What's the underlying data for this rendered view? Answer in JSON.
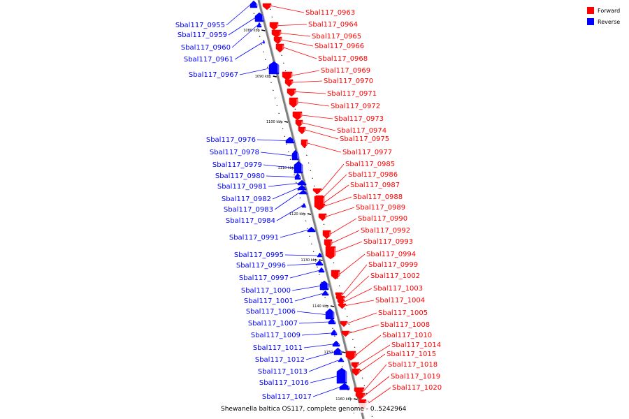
{
  "caption": "Shewanella baltica OS117, complete genome - 0..5242964",
  "legend": {
    "forward_label": "Forward",
    "reverse_label": "Reverse",
    "forward_color": "#ff0000",
    "reverse_color": "#0000ff"
  },
  "colors": {
    "axis": "#808080",
    "forward_stroke": "#ff0000",
    "reverse_stroke": "#0000ff",
    "tick": "#000000"
  },
  "axis_ticks_kbp": [
    "1080 kbp",
    "1090 kbp",
    "1100 kbp",
    "1110 kbp",
    "1120 kbp",
    "1130 kbp",
    "1140 kbp",
    "1150 kbp",
    "1160 kbp"
  ],
  "reverse_genes": [
    "Sbal117_0955",
    "Sbal117_0959",
    "Sbal117_0960",
    "Sbal117_0961",
    "Sbal117_0967",
    "Sbal117_0976",
    "Sbal117_0978",
    "Sbal117_0979",
    "Sbal117_0980",
    "Sbal117_0981",
    "Sbal117_0982",
    "Sbal117_0983",
    "Sbal117_0984",
    "Sbal117_0991",
    "Sbal117_0995",
    "Sbal117_0996",
    "Sbal117_0997",
    "Sbal117_1000",
    "Sbal117_1001",
    "Sbal117_1006",
    "Sbal117_1007",
    "Sbal117_1009",
    "Sbal117_1011",
    "Sbal117_1012",
    "Sbal117_1013",
    "Sbal117_1016",
    "Sbal117_1017"
  ],
  "forward_genes": [
    "Sbal117_0963",
    "Sbal117_0964",
    "Sbal117_0965",
    "Sbal117_0966",
    "Sbal117_0968",
    "Sbal117_0969",
    "Sbal117_0970",
    "Sbal117_0971",
    "Sbal117_0972",
    "Sbal117_0973",
    "Sbal117_0974",
    "Sbal117_0975",
    "Sbal117_0977",
    "Sbal117_0985",
    "Sbal117_0986",
    "Sbal117_0987",
    "Sbal117_0988",
    "Sbal117_0989",
    "Sbal117_0990",
    "Sbal117_0992",
    "Sbal117_0993",
    "Sbal117_0994",
    "Sbal117_0999",
    "Sbal117_1002",
    "Sbal117_1003",
    "Sbal117_1004",
    "Sbal117_1005",
    "Sbal117_1008",
    "Sbal117_1010",
    "Sbal117_1014",
    "Sbal117_1015",
    "Sbal117_1018",
    "Sbal117_1019",
    "Sbal117_1020"
  ]
}
